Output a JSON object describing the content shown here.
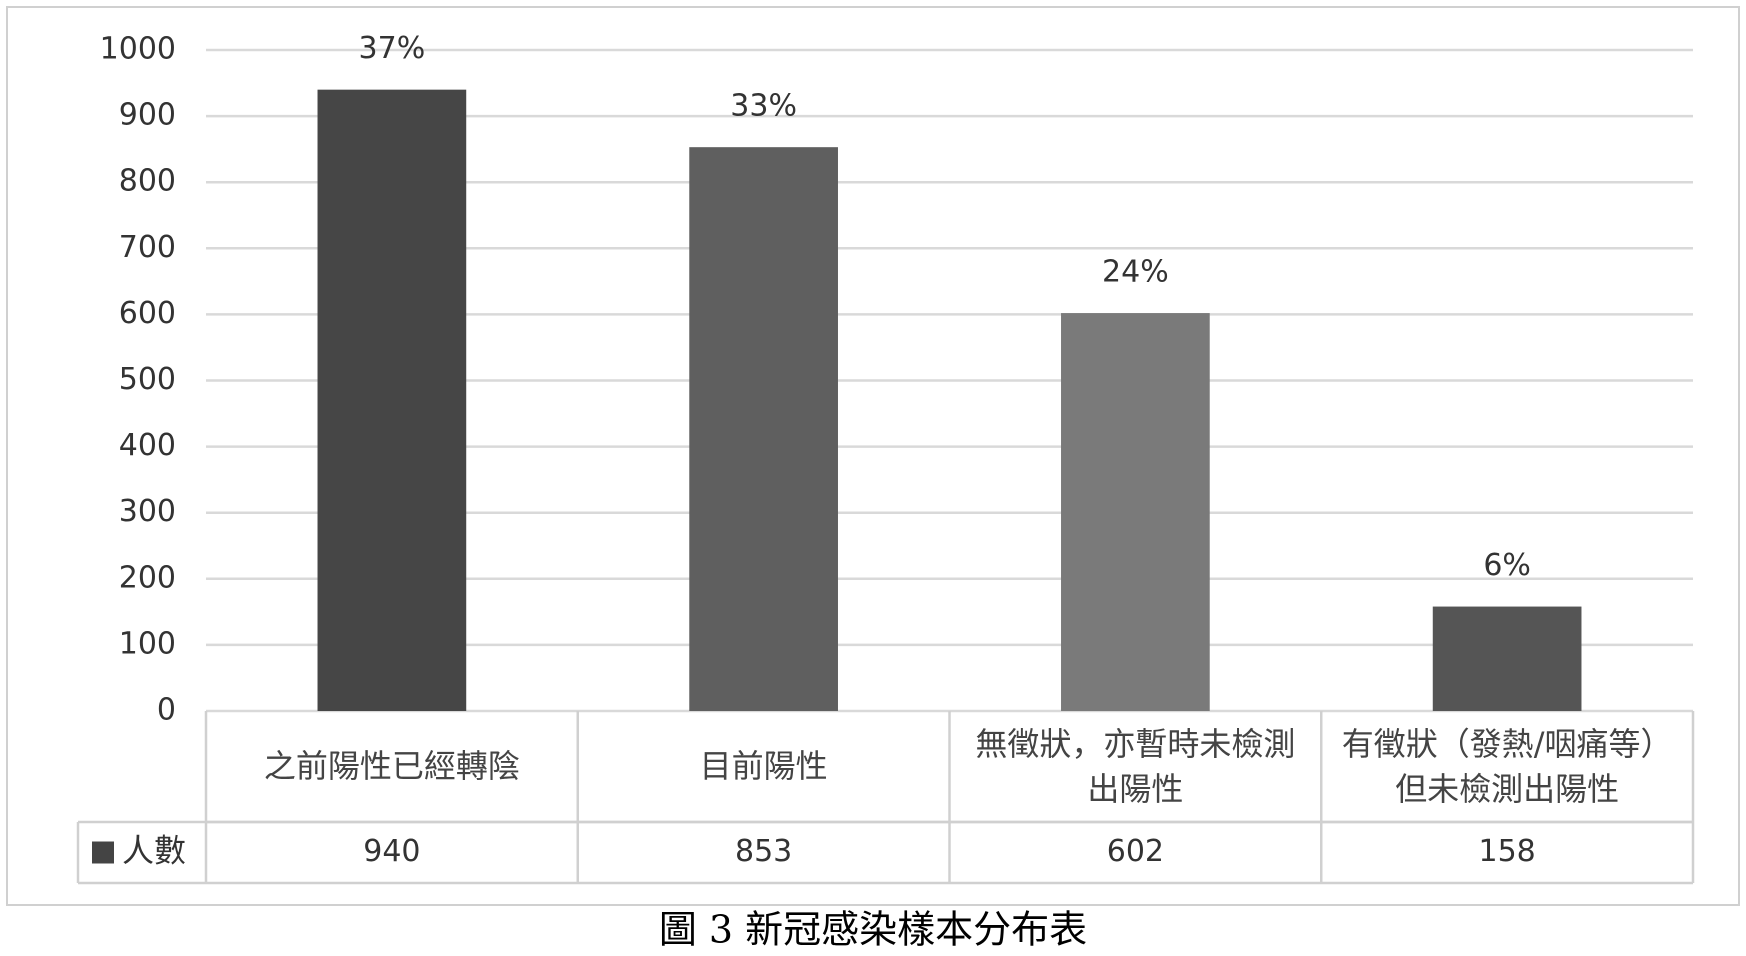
{
  "chart_data": {
    "type": "bar",
    "title": "圖 3 新冠感染樣本分布表",
    "categories": [
      "之前陽性已經轉陰",
      "目前陽性",
      "無徵狀，亦暫時未檢測出陽性",
      "有徵狀（發熱/咽痛等）但未檢測出陽性"
    ],
    "series": [
      {
        "name": "人數",
        "color": "#444444",
        "values": [
          940,
          853,
          602,
          158
        ]
      }
    ],
    "colors": [
      "#464646",
      "#5f5f5f",
      "#7a7a7a",
      "#555555"
    ],
    "bar_labels": [
      "37%",
      "33%",
      "24%",
      "6%"
    ],
    "ylim": [
      0,
      1000
    ],
    "yticks": [
      0,
      100,
      200,
      300,
      400,
      500,
      600,
      700,
      800,
      900,
      1000
    ],
    "grid": true,
    "data_table": true
  }
}
